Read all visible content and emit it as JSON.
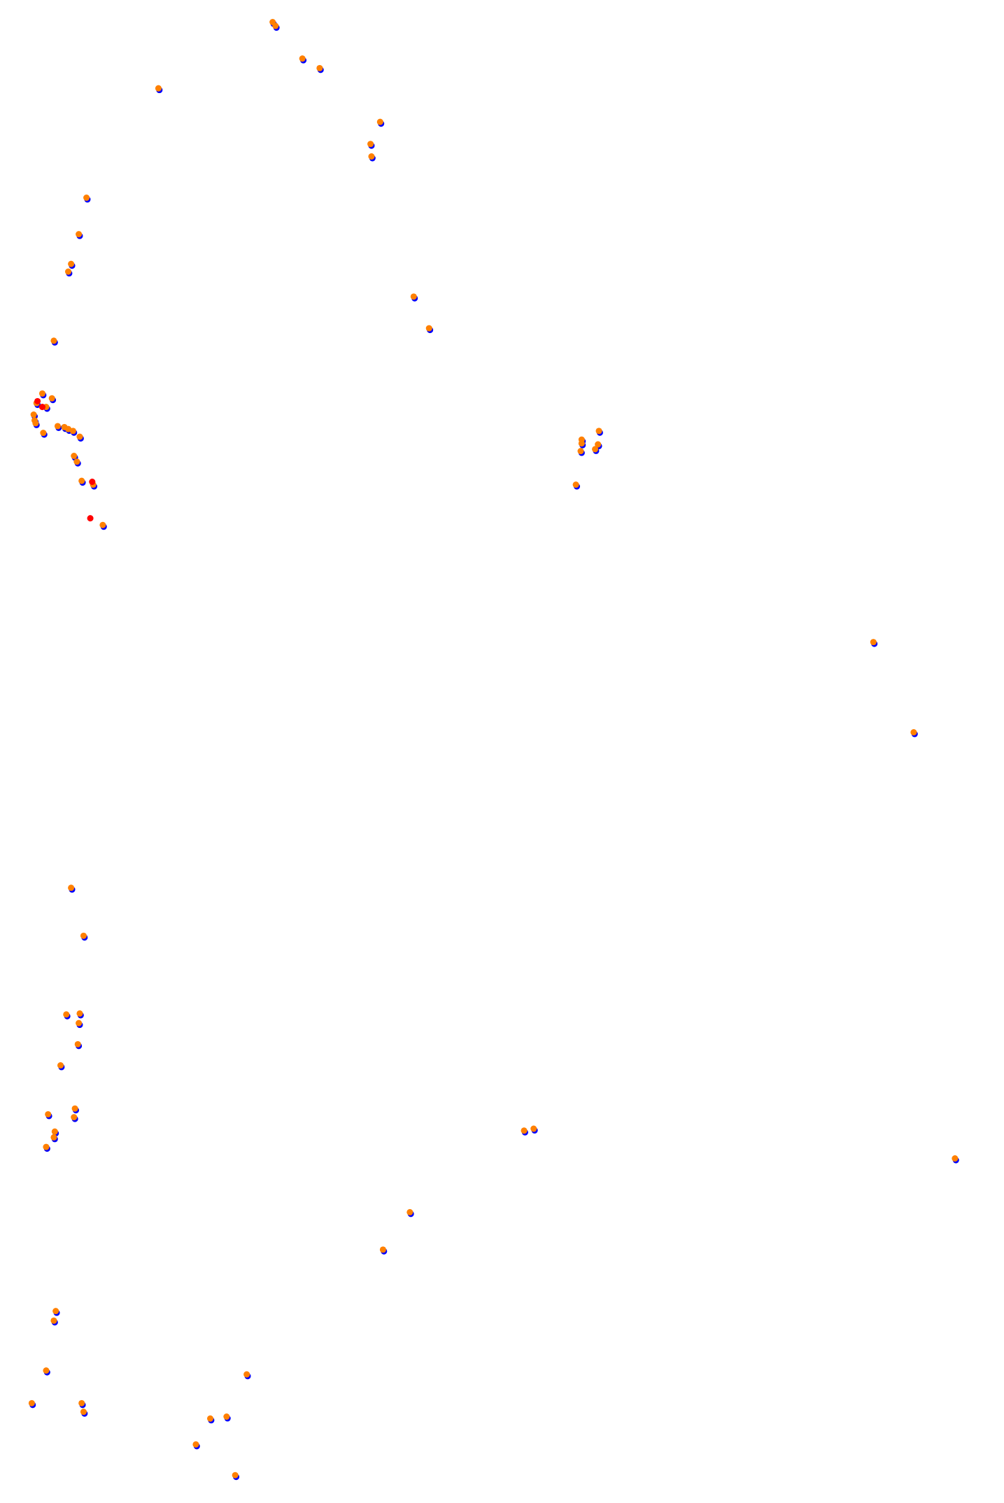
{
  "chart_data": {
    "type": "scatter",
    "title": "",
    "xlabel": "",
    "ylabel": "",
    "grid": false,
    "axes_visible": false,
    "xlim": [
      0,
      1046
    ],
    "ylim": [
      1566,
      0
    ],
    "colors": {
      "shadow": "#0000ff",
      "main": "#ff8000",
      "highlight": "#ff0000"
    },
    "series": [
      {
        "color": "#0000ff",
        "role": "shadow",
        "points": [
          [
            284,
            23
          ],
          [
            287,
            27
          ],
          [
            315,
            61
          ],
          [
            333,
            71
          ],
          [
            165,
            92
          ],
          [
            396,
            127
          ],
          [
            386,
            150
          ],
          [
            387,
            163
          ],
          [
            90,
            206
          ],
          [
            82,
            244
          ],
          [
            74,
            275
          ],
          [
            71,
            283
          ],
          [
            431,
            309
          ],
          [
            447,
            342
          ],
          [
            56,
            355
          ],
          [
            44,
            410
          ],
          [
            54,
            415
          ],
          [
            38,
            420
          ],
          [
            48,
            424
          ],
          [
            35,
            432
          ],
          [
            36,
            438
          ],
          [
            37,
            441
          ],
          [
            45,
            451
          ],
          [
            60,
            444
          ],
          [
            67,
            445
          ],
          [
            71,
            447
          ],
          [
            76,
            449
          ],
          [
            83,
            455
          ],
          [
            77,
            475
          ],
          [
            80,
            481
          ],
          [
            85,
            501
          ],
          [
            97,
            505
          ],
          [
            107,
            547
          ],
          [
            624,
            449
          ],
          [
            606,
            458
          ],
          [
            606,
            462
          ],
          [
            605,
            470
          ],
          [
            623,
            463
          ],
          [
            620,
            468
          ],
          [
            600,
            505
          ],
          [
            910,
            669
          ],
          [
            952,
            763
          ],
          [
            74,
            925
          ],
          [
            87,
            975
          ],
          [
            69,
            1057
          ],
          [
            83,
            1056
          ],
          [
            82,
            1066
          ],
          [
            81,
            1088
          ],
          [
            63,
            1110
          ],
          [
            50,
            1161
          ],
          [
            78,
            1155
          ],
          [
            77,
            1164
          ],
          [
            57,
            1179
          ],
          [
            56,
            1185
          ],
          [
            48,
            1195
          ],
          [
            546,
            1178
          ],
          [
            556,
            1176
          ],
          [
            995,
            1207
          ],
          [
            427,
            1263
          ],
          [
            399,
            1302
          ],
          [
            58,
            1366
          ],
          [
            56,
            1376
          ],
          [
            48,
            1428
          ],
          [
            257,
            1432
          ],
          [
            33,
            1462
          ],
          [
            85,
            1462
          ],
          [
            87,
            1471
          ],
          [
            236,
            1476
          ],
          [
            219,
            1478
          ],
          [
            204,
            1505
          ],
          [
            245,
            1537
          ]
        ]
      },
      {
        "color": "#ff8000",
        "role": "main",
        "points": [
          [
            284,
            23
          ],
          [
            287,
            27
          ],
          [
            315,
            61
          ],
          [
            333,
            71
          ],
          [
            165,
            92
          ],
          [
            396,
            127
          ],
          [
            386,
            150
          ],
          [
            387,
            163
          ],
          [
            90,
            206
          ],
          [
            82,
            244
          ],
          [
            74,
            275
          ],
          [
            71,
            283
          ],
          [
            431,
            309
          ],
          [
            447,
            342
          ],
          [
            56,
            355
          ],
          [
            44,
            410
          ],
          [
            54,
            415
          ],
          [
            38,
            420
          ],
          [
            48,
            424
          ],
          [
            35,
            432
          ],
          [
            36,
            438
          ],
          [
            37,
            441
          ],
          [
            45,
            451
          ],
          [
            60,
            444
          ],
          [
            67,
            445
          ],
          [
            71,
            447
          ],
          [
            76,
            449
          ],
          [
            83,
            455
          ],
          [
            77,
            475
          ],
          [
            80,
            481
          ],
          [
            85,
            501
          ],
          [
            97,
            505
          ],
          [
            107,
            547
          ],
          [
            624,
            449
          ],
          [
            606,
            458
          ],
          [
            606,
            462
          ],
          [
            605,
            470
          ],
          [
            623,
            463
          ],
          [
            620,
            468
          ],
          [
            600,
            505
          ],
          [
            910,
            669
          ],
          [
            952,
            763
          ],
          [
            74,
            925
          ],
          [
            87,
            975
          ],
          [
            69,
            1057
          ],
          [
            83,
            1056
          ],
          [
            82,
            1066
          ],
          [
            81,
            1088
          ],
          [
            63,
            1110
          ],
          [
            50,
            1161
          ],
          [
            78,
            1155
          ],
          [
            77,
            1164
          ],
          [
            57,
            1179
          ],
          [
            56,
            1185
          ],
          [
            48,
            1195
          ],
          [
            546,
            1178
          ],
          [
            556,
            1176
          ],
          [
            995,
            1207
          ],
          [
            427,
            1263
          ],
          [
            399,
            1302
          ],
          [
            58,
            1366
          ],
          [
            56,
            1376
          ],
          [
            48,
            1428
          ],
          [
            257,
            1432
          ],
          [
            33,
            1462
          ],
          [
            85,
            1462
          ],
          [
            87,
            1471
          ],
          [
            236,
            1476
          ],
          [
            219,
            1478
          ],
          [
            204,
            1505
          ],
          [
            245,
            1537
          ]
        ]
      },
      {
        "color": "#ff0000",
        "role": "highlight",
        "points": [
          [
            39,
            418
          ],
          [
            44,
            424
          ],
          [
            96,
            502
          ],
          [
            94,
            540
          ]
        ]
      }
    ]
  }
}
